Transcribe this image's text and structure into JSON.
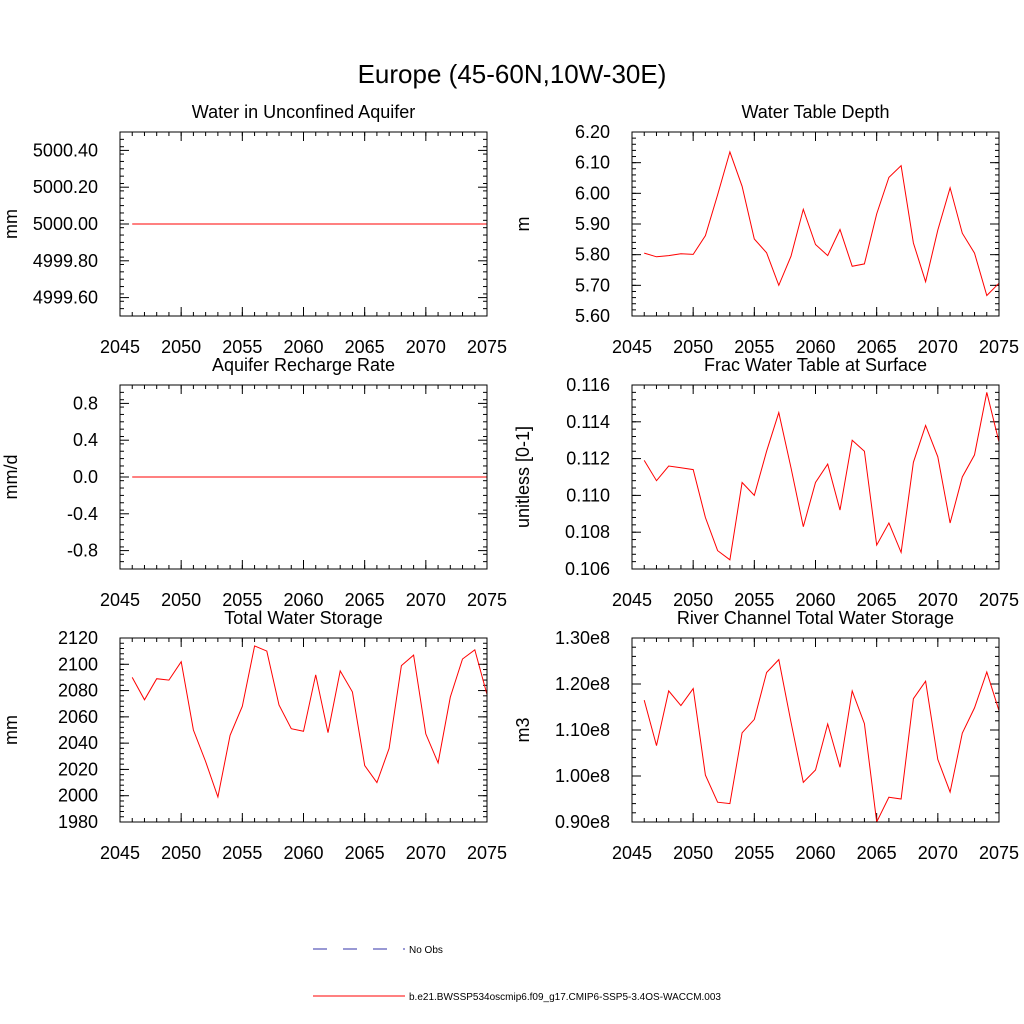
{
  "figure": {
    "title": "Europe (45-60N,10W-30E)",
    "legend": {
      "obs_label": "No Obs",
      "obs_color": "#3333aa",
      "model_label": "b.e21.BWSSP534oscmip6.f09_g17.CMIP6-SSP5-3.4OS-WACCM.003",
      "model_color": "#ff0000"
    }
  },
  "chart_data": [
    {
      "type": "line",
      "title": "Water in Unconfined Aquifer",
      "ylabel": "mm",
      "xlim": [
        2045,
        2075
      ],
      "ylim": [
        4999.5,
        5000.5
      ],
      "xticks": [
        2045,
        2050,
        2055,
        2060,
        2065,
        2070,
        2075
      ],
      "yticks": [
        4999.6,
        4999.8,
        5000.0,
        5000.2,
        5000.4
      ],
      "ytick_labels": [
        "4999.60",
        "4999.80",
        "5000.00",
        "5000.20",
        "5000.40"
      ],
      "yminor_step": 0.04,
      "xminor_step": 1,
      "x": [
        2046,
        2047,
        2048,
        2049,
        2050,
        2051,
        2052,
        2053,
        2054,
        2055,
        2056,
        2057,
        2058,
        2059,
        2060,
        2061,
        2062,
        2063,
        2064,
        2065,
        2066,
        2067,
        2068,
        2069,
        2070,
        2071,
        2072,
        2073,
        2074,
        2075
      ],
      "series": [
        {
          "values": [
            5000.0,
            5000.0,
            5000.0,
            5000.0,
            5000.0,
            5000.0,
            5000.0,
            5000.0,
            5000.0,
            5000.0,
            5000.0,
            5000.0,
            5000.0,
            5000.0,
            5000.0,
            5000.0,
            5000.0,
            5000.0,
            5000.0,
            5000.0,
            5000.0,
            5000.0,
            5000.0,
            5000.0,
            5000.0,
            5000.0,
            5000.0,
            5000.0,
            5000.0,
            5000.0
          ]
        }
      ]
    },
    {
      "type": "line",
      "title": "Water Table Depth",
      "ylabel": "m",
      "xlim": [
        2045,
        2075
      ],
      "ylim": [
        5.6,
        6.2
      ],
      "xticks": [
        2045,
        2050,
        2055,
        2060,
        2065,
        2070,
        2075
      ],
      "yticks": [
        5.6,
        5.7,
        5.8,
        5.9,
        6.0,
        6.1,
        6.2
      ],
      "ytick_labels": [
        "5.60",
        "5.70",
        "5.80",
        "5.90",
        "6.00",
        "6.10",
        "6.20"
      ],
      "yminor_step": 0.02,
      "xminor_step": 1,
      "x": [
        2046,
        2047,
        2048,
        2049,
        2050,
        2051,
        2052,
        2053,
        2054,
        2055,
        2056,
        2057,
        2058,
        2059,
        2060,
        2061,
        2062,
        2063,
        2064,
        2065,
        2066,
        2067,
        2068,
        2069,
        2070,
        2071,
        2072,
        2073,
        2074,
        2075
      ],
      "series": [
        {
          "values": [
            5.805,
            5.793,
            5.797,
            5.803,
            5.801,
            5.862,
            5.995,
            6.135,
            6.023,
            5.851,
            5.806,
            5.7,
            5.795,
            5.948,
            5.833,
            5.797,
            5.882,
            5.762,
            5.77,
            5.933,
            6.052,
            6.09,
            5.838,
            5.712,
            5.88,
            6.018,
            5.87,
            5.805,
            5.667,
            5.707
          ]
        }
      ]
    },
    {
      "type": "line",
      "title": "Aquifer Recharge Rate",
      "ylabel": "mm/d",
      "xlim": [
        2045,
        2075
      ],
      "ylim": [
        -1.0,
        1.0
      ],
      "xticks": [
        2045,
        2050,
        2055,
        2060,
        2065,
        2070,
        2075
      ],
      "yticks": [
        -0.8,
        -0.4,
        0.0,
        0.4,
        0.8
      ],
      "ytick_labels": [
        "-0.8",
        "-0.4",
        "0.0",
        "0.4",
        "0.8"
      ],
      "yminor_step": 0.08,
      "xminor_step": 1,
      "x": [
        2046,
        2047,
        2048,
        2049,
        2050,
        2051,
        2052,
        2053,
        2054,
        2055,
        2056,
        2057,
        2058,
        2059,
        2060,
        2061,
        2062,
        2063,
        2064,
        2065,
        2066,
        2067,
        2068,
        2069,
        2070,
        2071,
        2072,
        2073,
        2074,
        2075
      ],
      "series": [
        {
          "values": [
            0.0,
            0.0,
            0.0,
            0.0,
            0.0,
            0.0,
            0.0,
            0.0,
            0.0,
            0.0,
            0.0,
            0.0,
            0.0,
            0.0,
            0.0,
            0.0,
            0.0,
            0.0,
            0.0,
            0.0,
            0.0,
            0.0,
            0.0,
            0.0,
            0.0,
            0.0,
            0.0,
            0.0,
            0.0,
            0.0
          ]
        }
      ]
    },
    {
      "type": "line",
      "title": "Frac Water Table at Surface",
      "ylabel": "unitless [0-1]",
      "xlim": [
        2045,
        2075
      ],
      "ylim": [
        0.106,
        0.116
      ],
      "xticks": [
        2045,
        2050,
        2055,
        2060,
        2065,
        2070,
        2075
      ],
      "yticks": [
        0.106,
        0.108,
        0.11,
        0.112,
        0.114,
        0.116
      ],
      "ytick_labels": [
        "0.106",
        "0.108",
        "0.110",
        "0.112",
        "0.114",
        "0.116"
      ],
      "yminor_step": 0.0004,
      "xminor_step": 1,
      "x": [
        2046,
        2047,
        2048,
        2049,
        2050,
        2051,
        2052,
        2053,
        2054,
        2055,
        2056,
        2057,
        2058,
        2059,
        2060,
        2061,
        2062,
        2063,
        2064,
        2065,
        2066,
        2067,
        2068,
        2069,
        2070,
        2071,
        2072,
        2073,
        2074,
        2075
      ],
      "series": [
        {
          "values": [
            0.1119,
            0.1108,
            0.1116,
            0.1115,
            0.1114,
            0.1088,
            0.107,
            0.1065,
            0.1107,
            0.11,
            0.1124,
            0.1145,
            0.1115,
            0.1083,
            0.1107,
            0.1117,
            0.1092,
            0.113,
            0.1124,
            0.1073,
            0.1085,
            0.1069,
            0.1118,
            0.1138,
            0.1121,
            0.1085,
            0.111,
            0.1122,
            0.1156,
            0.1129
          ]
        }
      ]
    },
    {
      "type": "line",
      "title": "Total Water Storage",
      "ylabel": "mm",
      "xlim": [
        2045,
        2075
      ],
      "ylim": [
        1980,
        2120
      ],
      "xticks": [
        2045,
        2050,
        2055,
        2060,
        2065,
        2070,
        2075
      ],
      "yticks": [
        1980,
        2000,
        2020,
        2040,
        2060,
        2080,
        2100,
        2120
      ],
      "ytick_labels": [
        "1980",
        "2000",
        "2020",
        "2040",
        "2060",
        "2080",
        "2100",
        "2120"
      ],
      "yminor_step": 4,
      "xminor_step": 1,
      "x": [
        2046,
        2047,
        2048,
        2049,
        2050,
        2051,
        2052,
        2053,
        2054,
        2055,
        2056,
        2057,
        2058,
        2059,
        2060,
        2061,
        2062,
        2063,
        2064,
        2065,
        2066,
        2067,
        2068,
        2069,
        2070,
        2071,
        2072,
        2073,
        2074,
        2075
      ],
      "series": [
        {
          "values": [
            2090,
            2073,
            2089,
            2088,
            2102,
            2050,
            2026,
            1999,
            2046,
            2068,
            2114,
            2110,
            2069,
            2051,
            2049,
            2092,
            2048,
            2095,
            2079,
            2023,
            2010,
            2036,
            2099,
            2107,
            2047,
            2025,
            2075,
            2104,
            2111,
            2077
          ]
        }
      ]
    },
    {
      "type": "line",
      "title": "River Channel Total Water Storage",
      "ylabel": "m3",
      "xlim": [
        2045,
        2075
      ],
      "ylim": [
        90000000,
        130000000
      ],
      "xticks": [
        2045,
        2050,
        2055,
        2060,
        2065,
        2070,
        2075
      ],
      "yticks": [
        90000000,
        100000000,
        110000000,
        120000000,
        130000000
      ],
      "ytick_labels": [
        "0.90e8",
        "1.00e8",
        "1.10e8",
        "1.20e8",
        "1.30e8"
      ],
      "yminor_step": 2000000,
      "xminor_step": 1,
      "x": [
        2046,
        2047,
        2048,
        2049,
        2050,
        2051,
        2052,
        2053,
        2054,
        2055,
        2056,
        2057,
        2058,
        2059,
        2060,
        2061,
        2062,
        2063,
        2064,
        2065,
        2066,
        2067,
        2068,
        2069,
        2070,
        2071,
        2072,
        2073,
        2074,
        2075
      ],
      "series": [
        {
          "values": [
            116500000,
            106600000,
            118500000,
            115300000,
            119000000,
            100200000,
            94300000,
            94000000,
            109400000,
            112300000,
            122500000,
            125300000,
            111700000,
            98600000,
            101300000,
            111300000,
            101900000,
            118500000,
            111400000,
            90000000,
            95400000,
            95000000,
            116800000,
            120600000,
            103600000,
            96500000,
            109300000,
            114800000,
            122600000,
            114200000
          ]
        }
      ]
    }
  ]
}
